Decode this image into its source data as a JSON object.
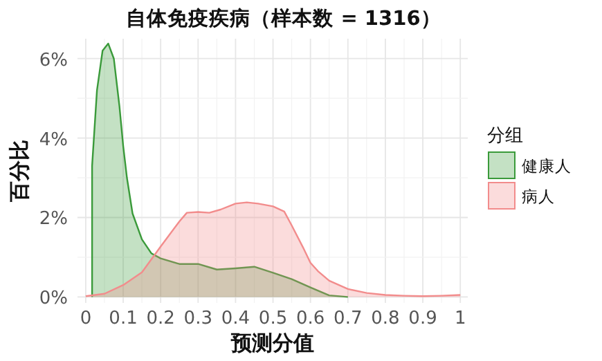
{
  "chart_data": {
    "type": "area",
    "title": "自体免疫疾病（样本数 = 1316）",
    "xlabel": "预测分值",
    "ylabel": "百分比",
    "legend_title": "分组",
    "legend": "right",
    "grid": true,
    "xlim": [
      -0.022,
      1.02
    ],
    "ylim": [
      -0.15,
      6.5
    ],
    "xticks": [
      0,
      0.1,
      0.2,
      0.3,
      0.4,
      0.5,
      0.6,
      0.7,
      0.8,
      0.9,
      1
    ],
    "yticks": [
      {
        "value": 0,
        "label": "0%"
      },
      {
        "value": 2,
        "label": "2%"
      },
      {
        "value": 4,
        "label": "4%"
      },
      {
        "value": 6,
        "label": "6%"
      }
    ],
    "series": [
      {
        "name": "健康人",
        "color": "#3a9a3a",
        "x": [
          0.017,
          0.017,
          0.03,
          0.045,
          0.06,
          0.075,
          0.09,
          0.1,
          0.11,
          0.125,
          0.15,
          0.175,
          0.2,
          0.25,
          0.3,
          0.35,
          0.4,
          0.45,
          0.5,
          0.55,
          0.6,
          0.65,
          0.7
        ],
        "values": [
          0,
          3.3,
          5.2,
          6.2,
          6.38,
          6.0,
          4.8,
          3.8,
          3.0,
          2.1,
          1.45,
          1.1,
          0.97,
          0.83,
          0.83,
          0.69,
          0.72,
          0.76,
          0.61,
          0.45,
          0.24,
          0.04,
          0
        ]
      },
      {
        "name": "病人",
        "color": "#f28c8c",
        "x": [
          0,
          0.05,
          0.1,
          0.15,
          0.2,
          0.25,
          0.27,
          0.3,
          0.33,
          0.36,
          0.4,
          0.43,
          0.46,
          0.5,
          0.53,
          0.55,
          0.58,
          0.6,
          0.62,
          0.65,
          0.7,
          0.75,
          0.8,
          0.85,
          0.9,
          0.95,
          1
        ],
        "values": [
          0.02,
          0.08,
          0.3,
          0.62,
          1.27,
          1.9,
          2.12,
          2.14,
          2.12,
          2.2,
          2.35,
          2.38,
          2.35,
          2.28,
          2.15,
          1.8,
          1.25,
          0.86,
          0.65,
          0.41,
          0.2,
          0.1,
          0.05,
          0.03,
          0.02,
          0.03,
          0.05
        ]
      }
    ]
  }
}
